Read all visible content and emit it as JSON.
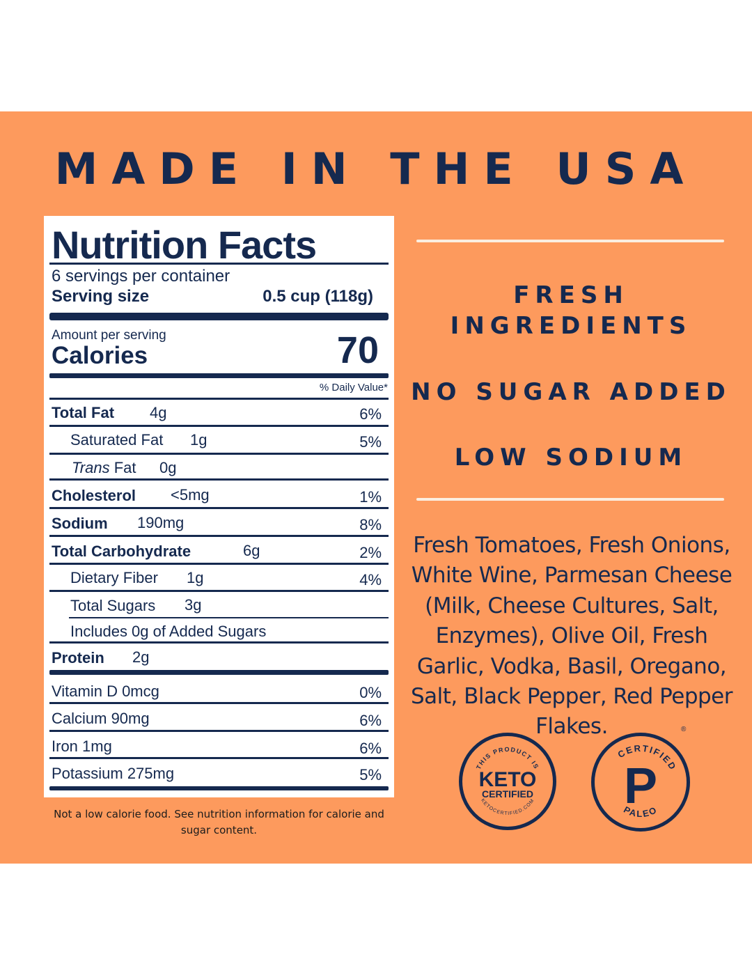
{
  "headline": "MADE IN THE USA",
  "nutrition": {
    "title": "Nutrition Facts",
    "servings": "6 servings per container",
    "serving_size_label": "Serving size",
    "serving_size_value": "0.5 cup (118g)",
    "amount_per_serving": "Amount per serving",
    "calories_label": "Calories",
    "calories_value": "70",
    "daily_value_header": "% Daily Value*",
    "rows": [
      {
        "name": "Total Fat",
        "amount": "4g",
        "dv": "6%"
      },
      {
        "name": "Saturated Fat",
        "amount": "1g",
        "dv": "5%"
      },
      {
        "name_italic": "Trans",
        "name": "Fat",
        "amount": "0g",
        "dv": ""
      },
      {
        "name": "Cholesterol",
        "amount": "<5mg",
        "dv": "1%"
      },
      {
        "name": "Sodium",
        "amount": "190mg",
        "dv": "8%"
      },
      {
        "name": "Total Carbohydrate",
        "amount": "6g",
        "dv": "2%"
      },
      {
        "name": "Dietary Fiber",
        "amount": "1g",
        "dv": "4%"
      },
      {
        "name": "Total Sugars",
        "amount": "3g",
        "dv": ""
      },
      {
        "name": "Includes 0g of Added Sugars",
        "amount": "",
        "dv": ""
      },
      {
        "name": "Protein",
        "amount": "2g",
        "dv": ""
      }
    ],
    "vitamins": [
      {
        "name": "Vitamin D 0mcg",
        "dv": "0%"
      },
      {
        "name": "Calcium 90mg",
        "dv": "6%"
      },
      {
        "name": "Iron 1mg",
        "dv": "6%"
      },
      {
        "name": "Potassium 275mg",
        "dv": "5%"
      }
    ]
  },
  "footnote": "Not a low calorie food. See nutrition information for calorie and sugar content.",
  "claims": {
    "fresh_line1": "FRESH",
    "fresh_line2": "INGREDIENTS",
    "no_sugar": "NO SUGAR ADDED",
    "low_sodium": "LOW SODIUM"
  },
  "ingredients": "Fresh Tomatoes, Fresh Onions, White Wine, Parmesan Cheese (Milk, Cheese Cultures, Salt, Enzymes), Olive Oil, Fresh Garlic, Vodka, Basil, Oregano, Salt, Black Pepper, Red Pepper Flakes.",
  "badges": {
    "keto_top": "THIS PRODUCT IS",
    "keto_main": "KETO",
    "keto_sub": "CERTIFIED",
    "keto_bottom": "KETOCERTIFIED.COM",
    "paleo_top": "CERTIFIED",
    "paleo_letter": "P",
    "paleo_bottom": "PALEO",
    "registered": "®"
  },
  "colors": {
    "background": "#fd9a5d",
    "navy": "#15294f",
    "label_bg": "#ffffff"
  }
}
